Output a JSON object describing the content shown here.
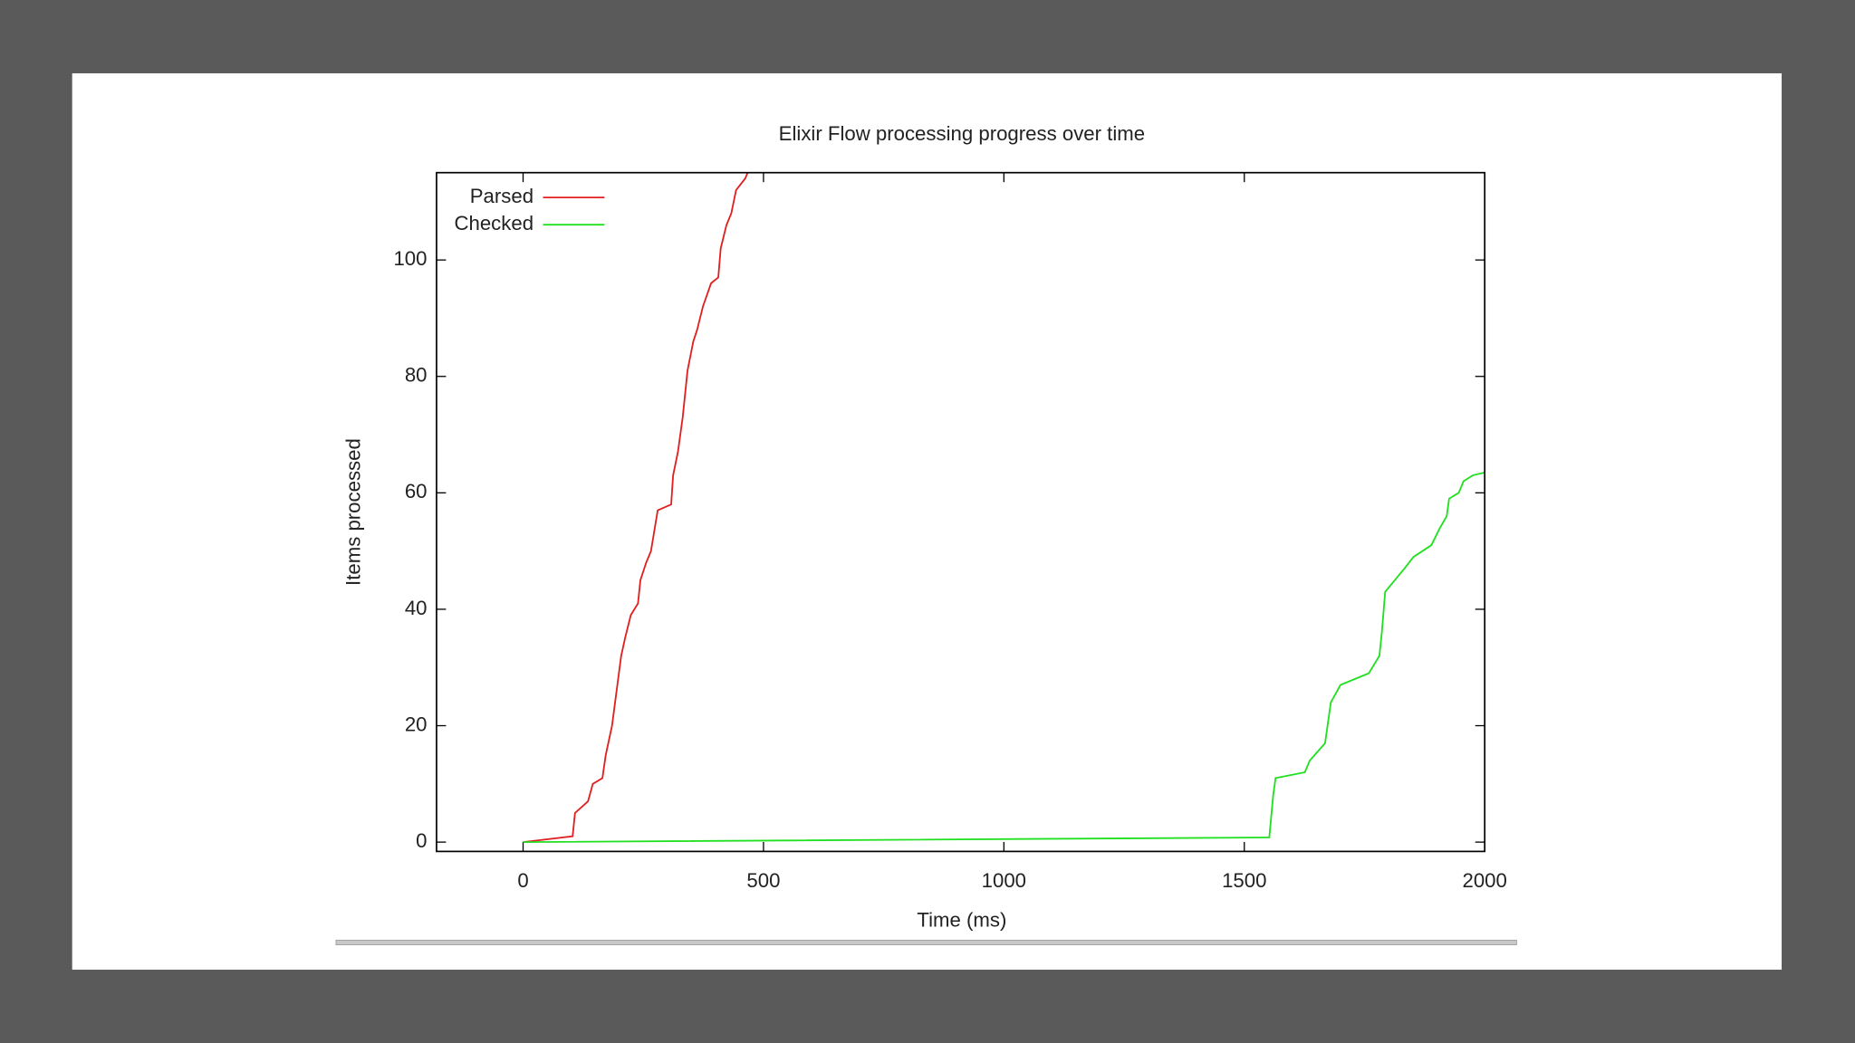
{
  "chart_data": {
    "type": "line",
    "title": "Elixir Flow processing progress over time",
    "x_label": "Time (ms)",
    "y_label": "Items processed",
    "xlim": [
      -180,
      2000
    ],
    "xticks": [
      0,
      500,
      1000,
      1500,
      2000
    ],
    "ylim": [
      -1.6,
      115
    ],
    "yticks": [
      0,
      20,
      40,
      60,
      80,
      100
    ],
    "legend": "top left",
    "grid": false,
    "series": [
      {
        "name": "Parsed",
        "color": "#e02020",
        "x": [
          0,
          103,
          108,
          135,
          145,
          165,
          172,
          185,
          204,
          212,
          224,
          239,
          244,
          256,
          266,
          280,
          308,
          312,
          322,
          332,
          342,
          354,
          362,
          374,
          391,
          406,
          411,
          423,
          433,
          443,
          462,
          467
        ],
        "values": [
          0,
          1,
          5,
          7,
          10,
          11,
          15,
          20,
          32,
          35,
          39,
          41,
          45,
          48,
          50,
          57,
          58,
          63,
          67,
          73,
          81,
          86,
          88,
          92,
          96,
          97,
          102,
          106,
          108,
          112,
          114,
          115
        ]
      },
      {
        "name": "Checked",
        "color": "#20e020",
        "x": [
          0,
          1552,
          1560,
          1565,
          1626,
          1636,
          1668,
          1680,
          1700,
          1759,
          1781,
          1786,
          1793,
          1813,
          1833,
          1852,
          1889,
          1907,
          1921,
          1926,
          1946,
          1956,
          1975,
          2000
        ],
        "values": [
          0,
          0.8,
          8,
          11,
          12,
          14,
          17,
          24,
          27,
          29,
          32,
          36,
          43,
          45,
          47,
          49,
          51,
          54,
          56,
          59,
          60,
          62,
          63,
          63.5
        ]
      }
    ]
  }
}
